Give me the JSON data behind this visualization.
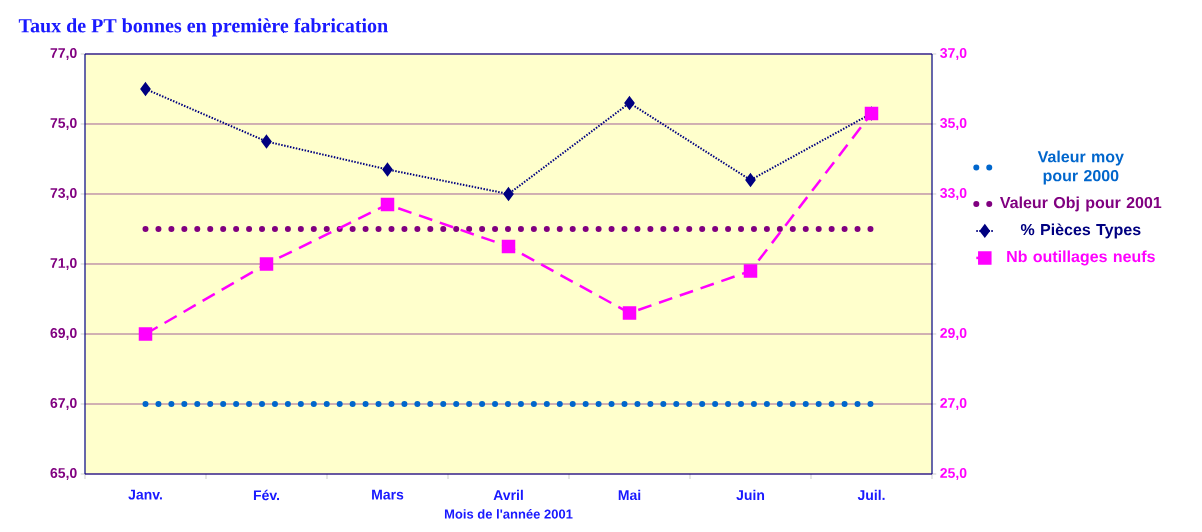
{
  "chart_data": {
    "type": "line",
    "title": "Taux de PT bonnes en première fabrication",
    "xlabel": "Mois de l'année 2001",
    "categories": [
      "Janv.",
      "Fév.",
      "Mars",
      "Avril",
      "Mai",
      "Juin",
      "Juil."
    ],
    "series": [
      {
        "name": "Valeur moy pour 2000",
        "color": "#0066cc",
        "values": [
          67,
          67,
          67,
          67,
          67,
          67,
          67
        ],
        "marker": "none",
        "line_style": "dotted"
      },
      {
        "name": "Valeur Obj pour 2001",
        "color": "#800080",
        "values": [
          72,
          72,
          72,
          72,
          72,
          72,
          72
        ],
        "marker": "none",
        "line_style": "dotted"
      },
      {
        "name": "% Pièces Types",
        "color": "#000080",
        "values": [
          76.0,
          74.5,
          73.7,
          73.0,
          75.6,
          73.4,
          75.3
        ],
        "marker": "diamond",
        "line_style": "dotted"
      },
      {
        "name": "Nb outillages neufs",
        "color": "#ff00ff",
        "values": [
          29.0,
          31.0,
          32.7,
          31.5,
          29.6,
          30.8,
          35.3
        ],
        "marker": "square",
        "line_style": "dashed",
        "axis": "y2"
      }
    ],
    "ylim": [
      65,
      77
    ],
    "yticks": [
      {
        "value": 65,
        "label": "65,0"
      },
      {
        "value": 67,
        "label": "67,0"
      },
      {
        "value": 69,
        "label": "69,0"
      },
      {
        "value": 71,
        "label": "71,0"
      },
      {
        "value": 73,
        "label": "73,0"
      },
      {
        "value": 75,
        "label": "75,0"
      },
      {
        "value": 77,
        "label": "77,0"
      }
    ],
    "y2lim": [
      25,
      37
    ],
    "y2ticks": [
      {
        "value": 25,
        "label": "25,0"
      },
      {
        "value": 27,
        "label": "27,0"
      },
      {
        "value": 29,
        "label": "29,0"
      },
      {
        "value": 31,
        "label": null
      },
      {
        "value": 33,
        "label": "33,0"
      },
      {
        "value": 35,
        "label": "35,0"
      },
      {
        "value": 37,
        "label": "37,0"
      }
    ],
    "grid": "y",
    "legend": "right"
  }
}
